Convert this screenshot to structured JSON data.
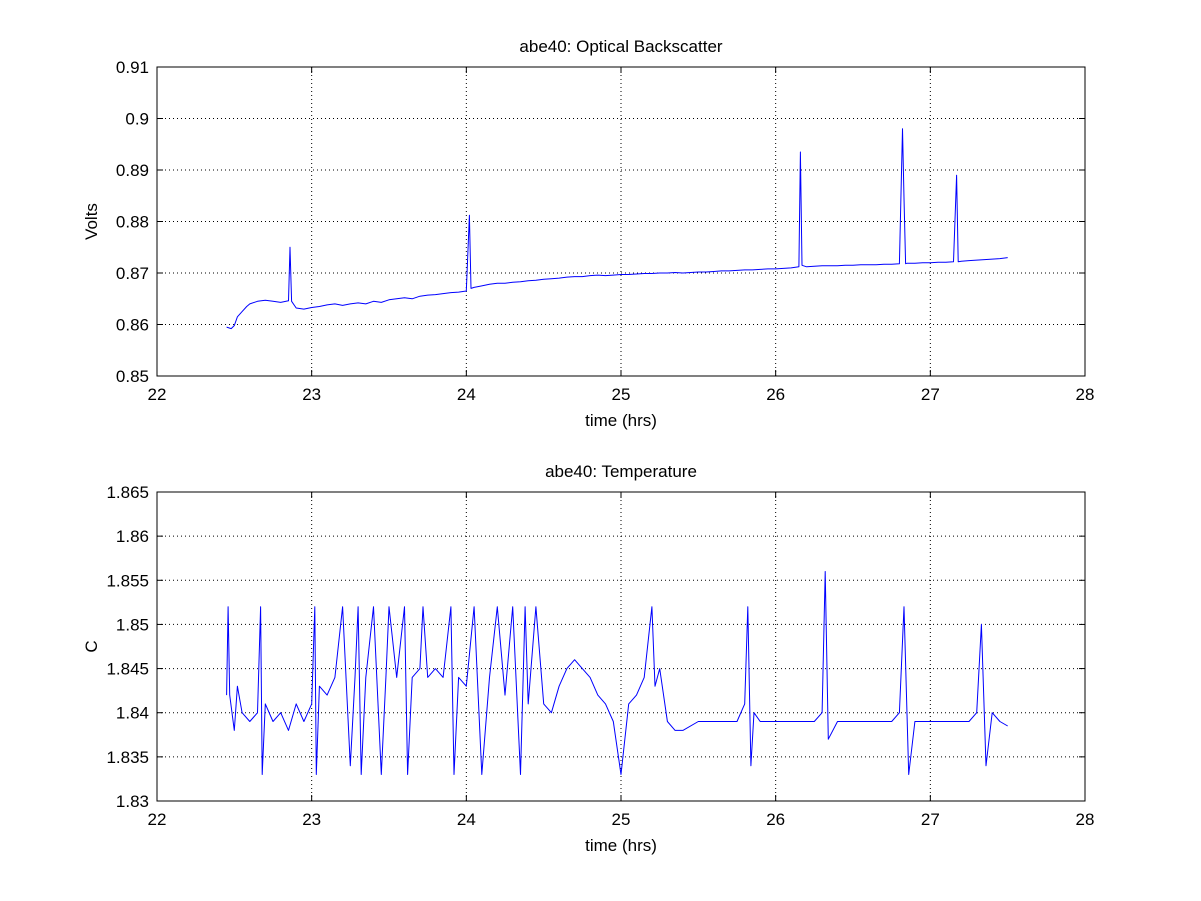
{
  "chart_data": [
    {
      "type": "line",
      "title": "abe40: Optical Backscatter",
      "xlabel": "time (hrs)",
      "ylabel": "Volts",
      "xlim": [
        22,
        28
      ],
      "ylim": [
        0.85,
        0.91
      ],
      "xticks": [
        "22",
        "23",
        "24",
        "25",
        "26",
        "27",
        "28"
      ],
      "yticks": [
        "0.85",
        "0.86",
        "0.87",
        "0.88",
        "0.89",
        "0.9",
        "0.91"
      ],
      "grid": true,
      "line_color": "#0000ff",
      "series": [
        {
          "x": [
            22.45,
            22.48,
            22.5,
            22.52,
            22.55,
            22.58,
            22.6,
            22.65,
            22.7,
            22.75,
            22.8,
            22.85,
            22.86,
            22.87,
            22.9,
            22.95,
            23.0,
            23.05,
            23.1,
            23.15,
            23.2,
            23.25,
            23.3,
            23.35,
            23.4,
            23.45,
            23.5,
            23.55,
            23.6,
            23.65,
            23.7,
            23.75,
            23.8,
            23.85,
            23.9,
            23.95,
            24.0,
            24.02,
            24.03,
            24.05,
            24.1,
            24.15,
            24.2,
            24.25,
            24.3,
            24.35,
            24.4,
            24.45,
            24.5,
            24.55,
            24.6,
            24.65,
            24.7,
            24.75,
            24.8,
            24.85,
            24.9,
            24.95,
            25.0,
            25.05,
            25.1,
            25.15,
            25.2,
            25.25,
            25.3,
            25.35,
            25.4,
            25.45,
            25.5,
            25.55,
            25.6,
            25.65,
            25.7,
            25.75,
            25.8,
            25.85,
            25.9,
            25.95,
            26.0,
            26.05,
            26.1,
            26.15,
            26.16,
            26.17,
            26.2,
            26.25,
            26.3,
            26.35,
            26.4,
            26.45,
            26.5,
            26.55,
            26.6,
            26.65,
            26.7,
            26.75,
            26.8,
            26.82,
            26.83,
            26.84,
            26.85,
            26.9,
            26.95,
            27.0,
            27.05,
            27.1,
            27.15,
            27.17,
            27.18,
            27.2,
            27.25,
            27.3,
            27.35,
            27.4,
            27.45,
            27.5
          ],
          "y": [
            0.8595,
            0.8592,
            0.8598,
            0.8615,
            0.8625,
            0.8635,
            0.864,
            0.8645,
            0.8647,
            0.8645,
            0.8643,
            0.8646,
            0.875,
            0.8645,
            0.8632,
            0.863,
            0.8633,
            0.8635,
            0.8638,
            0.864,
            0.8637,
            0.864,
            0.8642,
            0.864,
            0.8645,
            0.8643,
            0.8648,
            0.865,
            0.8652,
            0.865,
            0.8655,
            0.8657,
            0.8658,
            0.866,
            0.8662,
            0.8663,
            0.8665,
            0.8812,
            0.867,
            0.8672,
            0.8675,
            0.8678,
            0.868,
            0.868,
            0.8682,
            0.8683,
            0.8685,
            0.8686,
            0.8688,
            0.8689,
            0.869,
            0.8692,
            0.8693,
            0.8693,
            0.8695,
            0.8696,
            0.8695,
            0.8696,
            0.8697,
            0.8697,
            0.8698,
            0.8699,
            0.8699,
            0.87,
            0.87,
            0.8701,
            0.87,
            0.8701,
            0.8702,
            0.8702,
            0.8703,
            0.8704,
            0.8704,
            0.8705,
            0.8706,
            0.8706,
            0.8707,
            0.8708,
            0.8708,
            0.8709,
            0.871,
            0.8712,
            0.8935,
            0.8715,
            0.8712,
            0.8713,
            0.8714,
            0.8714,
            0.8714,
            0.8715,
            0.8715,
            0.8716,
            0.8716,
            0.8716,
            0.8717,
            0.8717,
            0.8718,
            0.898,
            0.8845,
            0.8718,
            0.8719,
            0.8719,
            0.872,
            0.872,
            0.8721,
            0.8721,
            0.8722,
            0.889,
            0.8722,
            0.8723,
            0.8724,
            0.8725,
            0.8726,
            0.8727,
            0.8728,
            0.873
          ]
        }
      ]
    },
    {
      "type": "line",
      "title": "abe40: Temperature",
      "xlabel": "time (hrs)",
      "ylabel": "C",
      "xlim": [
        22,
        28
      ],
      "ylim": [
        1.83,
        1.865
      ],
      "xticks": [
        "22",
        "23",
        "24",
        "25",
        "26",
        "27",
        "28"
      ],
      "yticks": [
        "1.83",
        "1.835",
        "1.84",
        "1.845",
        "1.85",
        "1.855",
        "1.86",
        "1.865"
      ],
      "grid": true,
      "line_color": "#0000ff",
      "series": [
        {
          "x": [
            22.45,
            22.46,
            22.47,
            22.5,
            22.52,
            22.55,
            22.6,
            22.65,
            22.67,
            22.68,
            22.7,
            22.75,
            22.8,
            22.85,
            22.9,
            22.95,
            23.0,
            23.02,
            23.03,
            23.05,
            23.1,
            23.15,
            23.2,
            23.25,
            23.28,
            23.3,
            23.32,
            23.35,
            23.4,
            23.45,
            23.48,
            23.5,
            23.55,
            23.6,
            23.62,
            23.65,
            23.7,
            23.72,
            23.75,
            23.8,
            23.85,
            23.9,
            23.92,
            23.95,
            24.0,
            24.05,
            24.1,
            24.15,
            24.2,
            24.25,
            24.3,
            24.35,
            24.38,
            24.4,
            24.45,
            24.5,
            24.55,
            24.6,
            24.65,
            24.7,
            24.75,
            24.8,
            24.85,
            24.9,
            24.95,
            25.0,
            25.05,
            25.1,
            25.15,
            25.2,
            25.22,
            25.25,
            25.3,
            25.35,
            25.4,
            25.5,
            25.6,
            25.7,
            25.75,
            25.8,
            25.82,
            25.84,
            25.86,
            25.9,
            26.0,
            26.1,
            26.2,
            26.25,
            26.3,
            26.32,
            26.34,
            26.4,
            26.5,
            26.6,
            26.7,
            26.75,
            26.8,
            26.83,
            26.86,
            26.9,
            27.0,
            27.1,
            27.2,
            27.25,
            27.3,
            27.33,
            27.36,
            27.4,
            27.45,
            27.5
          ],
          "y": [
            1.842,
            1.852,
            1.842,
            1.838,
            1.843,
            1.84,
            1.839,
            1.84,
            1.852,
            1.833,
            1.841,
            1.839,
            1.84,
            1.838,
            1.841,
            1.839,
            1.841,
            1.852,
            1.833,
            1.843,
            1.842,
            1.844,
            1.852,
            1.834,
            1.844,
            1.852,
            1.833,
            1.844,
            1.852,
            1.833,
            1.844,
            1.852,
            1.844,
            1.852,
            1.833,
            1.844,
            1.845,
            1.852,
            1.844,
            1.845,
            1.844,
            1.852,
            1.833,
            1.844,
            1.843,
            1.852,
            1.833,
            1.844,
            1.852,
            1.842,
            1.852,
            1.833,
            1.852,
            1.841,
            1.852,
            1.841,
            1.84,
            1.843,
            1.845,
            1.846,
            1.845,
            1.844,
            1.842,
            1.841,
            1.839,
            1.833,
            1.841,
            1.842,
            1.844,
            1.852,
            1.843,
            1.845,
            1.839,
            1.838,
            1.838,
            1.839,
            1.839,
            1.839,
            1.839,
            1.841,
            1.852,
            1.834,
            1.84,
            1.839,
            1.839,
            1.839,
            1.839,
            1.839,
            1.84,
            1.856,
            1.837,
            1.839,
            1.839,
            1.839,
            1.839,
            1.839,
            1.84,
            1.852,
            1.833,
            1.839,
            1.839,
            1.839,
            1.839,
            1.839,
            1.84,
            1.85,
            1.834,
            1.84,
            1.839,
            1.8385
          ]
        }
      ]
    }
  ]
}
